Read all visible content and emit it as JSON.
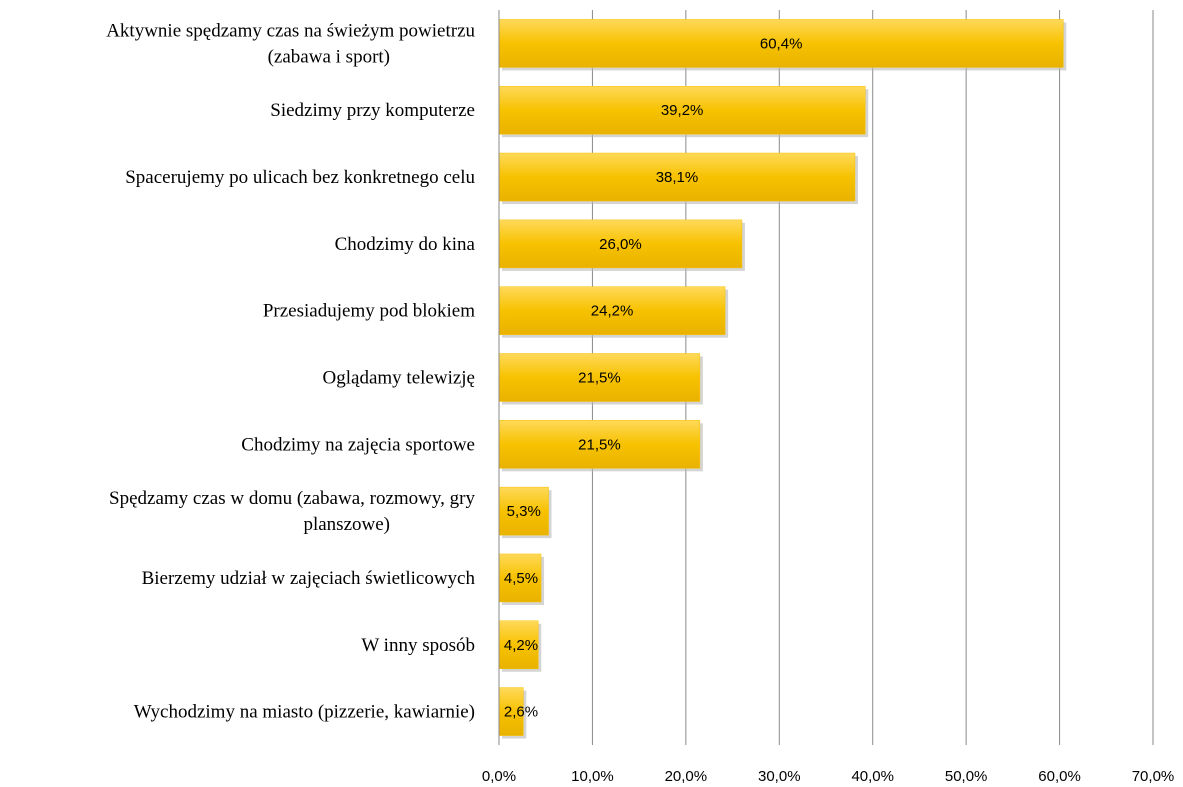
{
  "chart_data": {
    "type": "bar",
    "orientation": "horizontal",
    "categories": [
      "Aktywnie spędzamy czas na świeżym powietrzu\n(zabawa i sport)",
      "Siedzimy przy komputerze",
      "Spacerujemy po ulicach bez konkretnego  celu",
      "Chodzimy do kina",
      "Przesiadujemy pod blokiem",
      "Oglądamy telewizję",
      "Chodzimy na zajęcia sportowe",
      "Spędzamy czas w domu (zabawa, rozmowy, gry\nplanszowe)",
      "Bierzemy udział w zajęciach świetlicowych",
      "W inny sposób",
      "Wychodzimy na miasto (pizzerie, kawiarnie)"
    ],
    "values": [
      60.4,
      39.2,
      38.1,
      26.0,
      24.2,
      21.5,
      21.5,
      5.3,
      4.5,
      4.2,
      2.6
    ],
    "value_labels": [
      "60,4%",
      "39,2%",
      "38,1%",
      "26,0%",
      "24,2%",
      "21,5%",
      "21,5%",
      "5,3%",
      "4,5%",
      "4,2%",
      "2,6%"
    ],
    "color": "#f7c200",
    "xlim": [
      0,
      70
    ],
    "xticks": [
      {
        "value": 0,
        "label": "0,0%"
      },
      {
        "value": 10,
        "label": "10,0%"
      },
      {
        "value": 20,
        "label": "20,0%"
      },
      {
        "value": 30,
        "label": "30,0%"
      },
      {
        "value": 40,
        "label": "40,0%"
      },
      {
        "value": 50,
        "label": "50,0%"
      },
      {
        "value": 60,
        "label": "60,0%"
      },
      {
        "value": 70,
        "label": "70,0%"
      }
    ],
    "grid": true
  }
}
